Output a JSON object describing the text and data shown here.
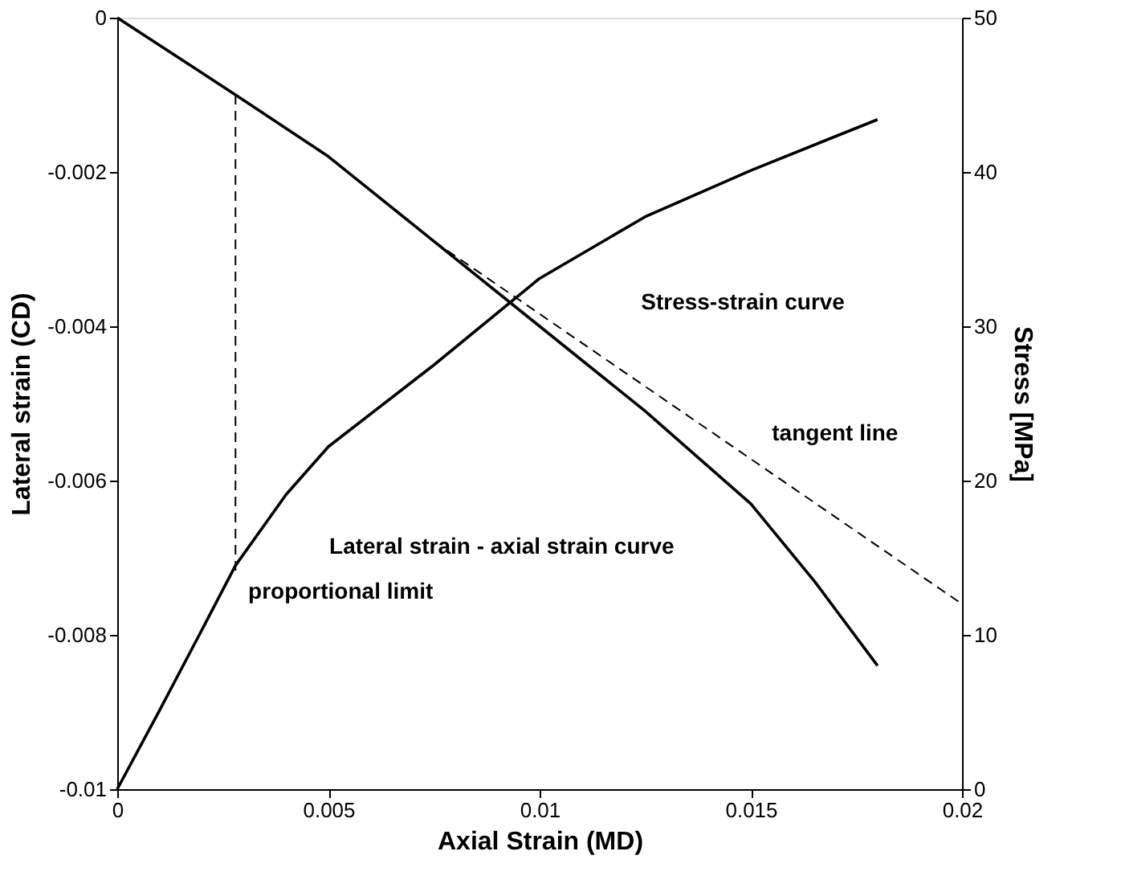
{
  "chart_data": {
    "type": "line",
    "xlabel": "Axial  Strain (MD)",
    "ylabel": "Lateral  strain  (CD)",
    "y2label": "Stress  [MPa]",
    "xlim": [
      0,
      0.02
    ],
    "xticks": [
      0,
      0.005,
      0.01,
      0.015,
      0.02
    ],
    "ylim": [
      -0.01,
      0
    ],
    "yticks": [
      0,
      -0.002,
      -0.004,
      -0.006,
      -0.008,
      -0.01
    ],
    "y2lim": [
      0,
      50
    ],
    "y2ticks": [
      0,
      10,
      20,
      30,
      40,
      50
    ],
    "grid": false,
    "series": [
      {
        "color": "#000000",
        "line_style": "solid",
        "x": [
          0,
          0.0028,
          0.005,
          0.0075,
          0.01,
          0.0125,
          0.015,
          0.0165,
          0.018
        ],
        "values": [
          0,
          -0.001,
          -0.0018,
          -0.0029,
          -0.004,
          -0.0051,
          -0.0063,
          -0.0073,
          -0.0084
        ]
      },
      {
        "color": "#000000",
        "line_style": "dashed",
        "x": [
          0.0075,
          0.02
        ],
        "values": [
          -0.0029,
          -0.0076
        ]
      },
      {
        "color": "#000000",
        "line_style": "dashed",
        "x": [
          0.0028,
          0.0028
        ],
        "values": [
          -0.001,
          -0.0072
        ]
      },
      {
        "color": "#000000",
        "line_style": "solid",
        "axis": "y2",
        "x": [
          0,
          0.001,
          0.002,
          0.0028,
          0.004,
          0.005,
          0.0075,
          0.01,
          0.0125,
          0.015,
          0.018
        ],
        "values": [
          0,
          5.1,
          10.3,
          14.5,
          19.1,
          22.2,
          27.5,
          33.1,
          37.1,
          40.1,
          43.4
        ]
      }
    ],
    "annotations": [
      "Stress-strain curve",
      "tangent line",
      "Lateral strain - axial strain curve",
      "proportional limit"
    ]
  }
}
